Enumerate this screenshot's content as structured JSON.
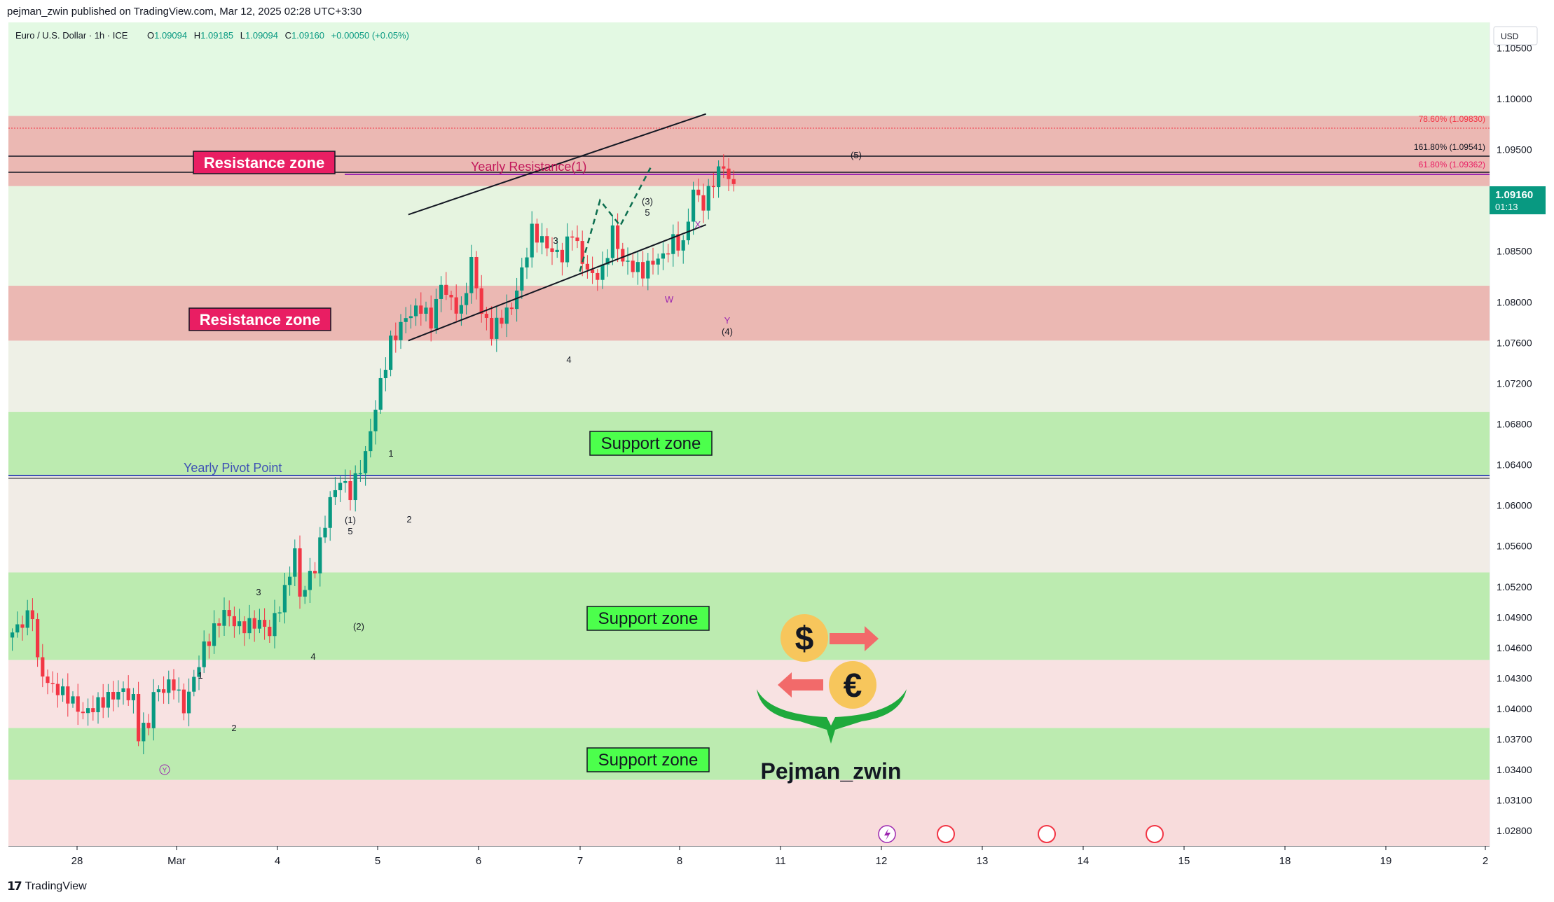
{
  "header": {
    "published": "pejman_zwin published on TradingView.com, Mar 12, 2025 02:28 UTC+3:30"
  },
  "legend": {
    "symbol": "Euro / U.S. Dollar · 1h · ICE",
    "o_label": "O",
    "o": "1.09094",
    "h_label": "H",
    "h": "1.09185",
    "l_label": "L",
    "l": "1.09094",
    "c_label": "C",
    "c": "1.09160",
    "change": "+0.00050 (+0.05%)"
  },
  "price_axis": {
    "currency": "USD",
    "ticks": [
      "1.10500",
      "1.10000",
      "1.09500",
      "1.08500",
      "1.08000",
      "1.07600",
      "1.07200",
      "1.06800",
      "1.06400",
      "1.06000",
      "1.05600",
      "1.05200",
      "1.04900",
      "1.04600",
      "1.04300",
      "1.04000",
      "1.03700",
      "1.03400",
      "1.03100",
      "1.02800"
    ],
    "current_price": "1.09160",
    "countdown": "01:13"
  },
  "time_axis": {
    "labels": [
      "28",
      "Mar",
      "4",
      "5",
      "6",
      "7",
      "8",
      "11",
      "12",
      "13",
      "14",
      "15",
      "18",
      "19",
      "2"
    ]
  },
  "zones": [
    {
      "label": "Resistance zone",
      "top": 1.0983,
      "bottom": 1.0914,
      "kind": "resistance"
    },
    {
      "label": "Resistance zone",
      "top": 1.0816,
      "bottom": 1.0762,
      "kind": "resistance"
    },
    {
      "label": "Support zone",
      "top": 1.0692,
      "bottom": 1.063,
      "kind": "support"
    },
    {
      "label": "Support zone",
      "top": 1.0534,
      "bottom": 1.0448,
      "kind": "support"
    },
    {
      "label": "Support zone",
      "top": 1.0381,
      "bottom": 1.033,
      "kind": "support"
    }
  ],
  "levels": {
    "yearly_resistance": "Yearly Resistance(1)",
    "yearly_pivot": "Yearly Pivot Point",
    "fib_1": "78.60% (1.09830)",
    "fib_2": "161.80% (1.09541)",
    "fib_3": "61.80% (1.09362)"
  },
  "wave_labels": {
    "w3a": "3",
    "w4a": "4",
    "w3b": "(3)",
    "w5a": "5",
    "wX": "X",
    "wW": "W",
    "wY": "Y",
    "w4b": "(4)",
    "w5b": "(5)",
    "w1a": "1",
    "w2a": "2",
    "w1b": "(1)",
    "w5c": "5",
    "w3c": "3",
    "w4c": "4",
    "w2b": "(2)",
    "w1c": "1",
    "w2c": "2",
    "wYc": "Y"
  },
  "watermark": {
    "name": "Pejman_zwin"
  },
  "footer": {
    "brand": "TradingView"
  },
  "colors": {
    "bull": "#089981",
    "bear": "#f23645",
    "resistance_label_bg": "#e91e63",
    "support_label_bg": "#4caf50",
    "pivot_line": "#3f51b5",
    "yearly_res_line": "#9c27b0"
  },
  "chart_data": {
    "type": "candlestick",
    "title": "Euro / U.S. Dollar · 1h · ICE",
    "ylim": [
      1.0265,
      1.1075
    ],
    "x_labels": [
      "28",
      "Mar",
      "4",
      "5",
      "6",
      "7",
      "8",
      "11",
      "12",
      "13",
      "14",
      "15",
      "18",
      "19",
      "2"
    ],
    "series": [
      {
        "name": "EURUSD 1h",
        "waypoints": [
          [
            0,
            1.0475
          ],
          [
            4,
            1.0495
          ],
          [
            5,
            1.0445
          ],
          [
            7,
            1.0425
          ],
          [
            11,
            1.0412
          ],
          [
            14,
            1.0395
          ],
          [
            18,
            1.0408
          ],
          [
            22,
            1.0418
          ],
          [
            24,
            1.0408
          ],
          [
            25,
            1.0375
          ],
          [
            27,
            1.0385
          ],
          [
            28,
            1.0415
          ],
          [
            32,
            1.0425
          ],
          [
            34,
            1.04
          ],
          [
            38,
            1.046
          ],
          [
            42,
            1.0495
          ],
          [
            45,
            1.048
          ],
          [
            49,
            1.0485
          ],
          [
            51,
            1.0475
          ],
          [
            54,
            1.0515
          ],
          [
            56,
            1.0555
          ],
          [
            57,
            1.051
          ],
          [
            60,
            1.054
          ],
          [
            63,
            1.0605
          ],
          [
            65,
            1.0625
          ],
          [
            67,
            1.0612
          ],
          [
            70,
            1.065
          ],
          [
            73,
            1.072
          ],
          [
            75,
            1.076
          ],
          [
            78,
            1.0785
          ],
          [
            81,
            1.0795
          ],
          [
            83,
            1.078
          ],
          [
            85,
            1.0818
          ],
          [
            87,
            1.08
          ],
          [
            89,
            1.079
          ],
          [
            91,
            1.084
          ],
          [
            93,
            1.079
          ],
          [
            95,
            1.077
          ],
          [
            97,
            1.0785
          ],
          [
            99,
            1.0795
          ],
          [
            101,
            1.083
          ],
          [
            103,
            1.087
          ],
          [
            105,
            1.086
          ],
          [
            107,
            1.085
          ],
          [
            109,
            1.0845
          ],
          [
            111,
            1.087
          ],
          [
            113,
            1.084
          ],
          [
            115,
            1.0825
          ],
          [
            117,
            1.083
          ],
          [
            119,
            1.087
          ],
          [
            121,
            1.084
          ],
          [
            123,
            1.0835
          ],
          [
            125,
            1.083
          ],
          [
            127,
            1.084
          ],
          [
            129,
            1.0845
          ],
          [
            131,
            1.086
          ],
          [
            133,
            1.0855
          ],
          [
            135,
            1.091
          ],
          [
            137,
            1.0895
          ],
          [
            139,
            1.092
          ],
          [
            141,
            1.0935
          ],
          [
            142,
            1.092
          ],
          [
            143,
            1.0916
          ]
        ]
      }
    ],
    "overlays": {
      "channel_upper": [
        [
          79,
          1.0886
        ],
        [
          138,
          1.0985
        ]
      ],
      "channel_lower": [
        [
          79,
          1.0762
        ],
        [
          138,
          1.0876
        ]
      ],
      "projection": [
        [
          113,
          1.083
        ],
        [
          117,
          1.09
        ],
        [
          121,
          1.0875
        ],
        [
          127,
          1.0932
        ]
      ]
    },
    "grid": false
  }
}
